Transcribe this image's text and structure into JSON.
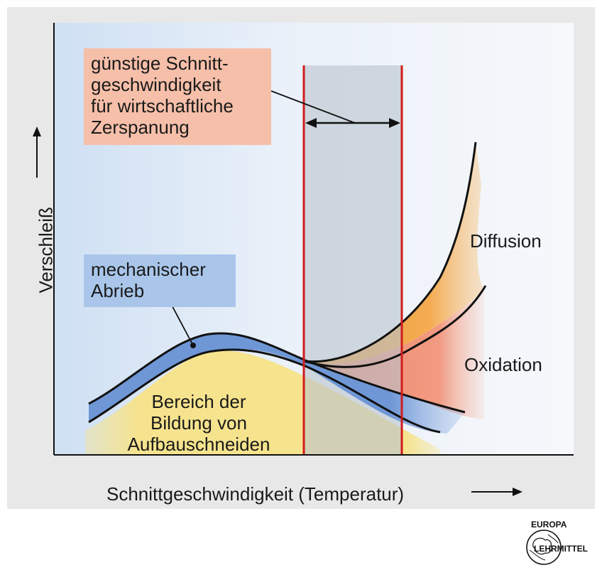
{
  "diagram": {
    "y_axis_label": "Verschleiß",
    "x_axis_label": "Schnittgeschwindigkeit (Temperatur)",
    "optimal_zone_label": [
      "günstige Schnitt-",
      "geschwindigkeit",
      "für wirtschaftliche",
      "Zerspanung"
    ],
    "mechanical_wear_label": [
      "mechanischer",
      "Abrieb"
    ],
    "built_up_edge_label": [
      "Bereich der",
      "Bildung von",
      "Aufbauschneiden"
    ],
    "diffusion_label": "Diffusion",
    "oxidation_label": "Oxidation"
  },
  "logo": {
    "top_text": "EUROPA",
    "bottom_text": "LEHRMITTEL"
  },
  "colors": {
    "plot_background": "#dde9f6",
    "optimal_band": "#ccd3da",
    "limit_lines": "#d11b1b",
    "optimal_label_box": "#f6bfa9",
    "mechanical_label_box": "#a9c6ea",
    "mechanical_band": "#6f97d6",
    "built_up_area": "#f6e38e",
    "diffusion_fill": "#f3a94a",
    "oxidation_fill": "#ef8a72"
  }
}
